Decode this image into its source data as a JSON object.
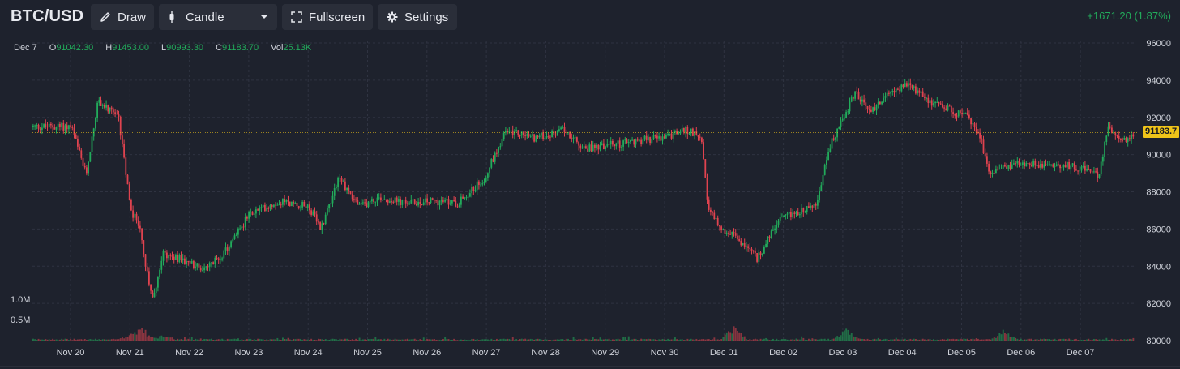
{
  "toolbar": {
    "symbol": "BTC/USD",
    "draw_label": "Draw",
    "candle_label": "Candle",
    "fullscreen_label": "Fullscreen",
    "settings_label": "Settings",
    "change_text": "+1671.20 (1.87%)"
  },
  "legend": {
    "date": "Dec 7",
    "o_key": "O",
    "o_val": "91042.30",
    "h_key": "H",
    "h_val": "91453.00",
    "l_key": "L",
    "l_val": "90993.30",
    "c_key": "C",
    "c_val": "91183.70",
    "vol_key": "Vol",
    "vol_val": "25.13K"
  },
  "volume_labels": [
    "1.0M",
    "0.5M"
  ],
  "last_price_label": "91183.7",
  "colors": {
    "up": "#22ab5b",
    "down": "#e0434f",
    "background": "#1e222d",
    "grid": "#2f3341",
    "last_price": "#f0c419"
  },
  "chart_data": {
    "type": "candlestick",
    "y_ticks": [
      96000,
      94000,
      92000,
      90000,
      88000,
      86000,
      84000,
      82000,
      80000
    ],
    "ylim": [
      80000,
      96000
    ],
    "x_labels": [
      "Nov 20",
      "Nov 21",
      "Nov 22",
      "Nov 23",
      "Nov 24",
      "Nov 25",
      "Nov 26",
      "Nov 27",
      "Nov 28",
      "Nov 29",
      "Nov 30",
      "Dec 01",
      "Dec 02",
      "Dec 03",
      "Dec 04",
      "Dec 05",
      "Dec 06",
      "Dec 07"
    ],
    "price_path": [
      [
        0,
        91500
      ],
      [
        0.25,
        88900
      ],
      [
        0.45,
        92900
      ],
      [
        0.8,
        91900
      ],
      [
        1.0,
        87000
      ],
      [
        1.15,
        86200
      ],
      [
        1.25,
        84000
      ],
      [
        1.38,
        82300
      ],
      [
        1.55,
        84700
      ],
      [
        2.0,
        84200
      ],
      [
        2.25,
        83800
      ],
      [
        2.6,
        84800
      ],
      [
        3.0,
        86800
      ],
      [
        3.5,
        87500
      ],
      [
        4.0,
        87200
      ],
      [
        4.2,
        86000
      ],
      [
        4.5,
        88800
      ],
      [
        4.85,
        87200
      ],
      [
        5.2,
        87700
      ],
      [
        5.6,
        87400
      ],
      [
        6.1,
        87500
      ],
      [
        6.5,
        87400
      ],
      [
        6.95,
        88700
      ],
      [
        7.3,
        91200
      ],
      [
        7.6,
        91100
      ],
      [
        7.8,
        90900
      ],
      [
        8.2,
        91200
      ],
      [
        8.3,
        91400
      ],
      [
        8.6,
        90300
      ],
      [
        9.0,
        90500
      ],
      [
        9.3,
        90600
      ],
      [
        9.6,
        90800
      ],
      [
        10.0,
        90900
      ],
      [
        10.3,
        91300
      ],
      [
        10.6,
        91100
      ],
      [
        10.72,
        87000
      ],
      [
        11.0,
        85900
      ],
      [
        11.25,
        85400
      ],
      [
        11.55,
        84400
      ],
      [
        11.9,
        86400
      ],
      [
        12.2,
        86900
      ],
      [
        12.55,
        87300
      ],
      [
        12.75,
        90300
      ],
      [
        13.0,
        92000
      ],
      [
        13.2,
        93300
      ],
      [
        13.45,
        92300
      ],
      [
        13.85,
        93500
      ],
      [
        14.1,
        93700
      ],
      [
        14.5,
        92800
      ],
      [
        14.8,
        92400
      ],
      [
        15.1,
        92000
      ],
      [
        15.3,
        91000
      ],
      [
        15.45,
        89000
      ],
      [
        15.7,
        89400
      ],
      [
        16.0,
        89500
      ],
      [
        16.4,
        89500
      ],
      [
        16.8,
        89400
      ],
      [
        17.1,
        89200
      ],
      [
        17.3,
        88800
      ],
      [
        17.45,
        91500
      ],
      [
        17.6,
        91100
      ],
      [
        17.75,
        90700
      ],
      [
        17.95,
        91180
      ]
    ],
    "volume_unit": "M",
    "volume_spikes": [
      [
        1.0,
        0.12
      ],
      [
        1.2,
        0.28
      ],
      [
        1.55,
        0.1
      ],
      [
        11.15,
        0.35
      ],
      [
        13.05,
        0.25
      ],
      [
        15.7,
        0.22
      ]
    ]
  }
}
